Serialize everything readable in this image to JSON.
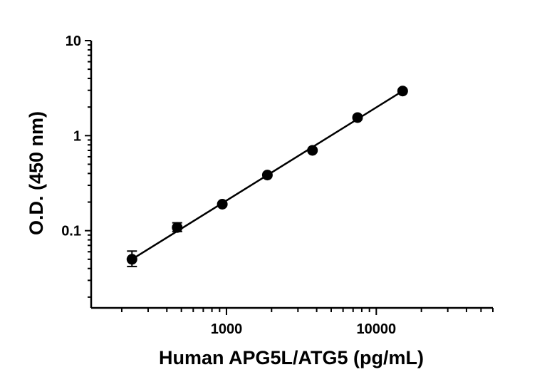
{
  "chart_data": {
    "type": "scatter",
    "title": "",
    "xlabel": "Human APG5L/ATG5 (pg/mL)",
    "ylabel": "O.D. (450 nm)",
    "x_scale": "log",
    "y_scale": "log",
    "xlim": [
      125,
      60000
    ],
    "ylim": [
      0.01,
      10
    ],
    "x_tick_labels": [
      {
        "value": 1000,
        "label": "1000"
      },
      {
        "value": 10000,
        "label": "10000"
      }
    ],
    "y_tick_labels": [
      {
        "value": 10,
        "label": "10"
      },
      {
        "value": 1,
        "label": "1"
      },
      {
        "value": 0.1,
        "label": "0.1"
      }
    ],
    "grid": false,
    "legend": "none",
    "series": [
      {
        "points": [
          {
            "x": 234,
            "y": 0.05,
            "err_low": 0.042,
            "err_high": 0.061
          },
          {
            "x": 469,
            "y": 0.108,
            "err_low": 0.098,
            "err_high": 0.121
          },
          {
            "x": 938,
            "y": 0.19
          },
          {
            "x": 1875,
            "y": 0.385
          },
          {
            "x": 3750,
            "y": 0.7
          },
          {
            "x": 7500,
            "y": 1.55
          },
          {
            "x": 15000,
            "y": 2.95
          }
        ],
        "fit": {
          "type": "line",
          "x_start": 234,
          "y_start": 0.05,
          "x_end": 15000,
          "y_end": 2.95
        }
      }
    ],
    "colors": {
      "axis": "#000000",
      "points": "#000000"
    }
  }
}
